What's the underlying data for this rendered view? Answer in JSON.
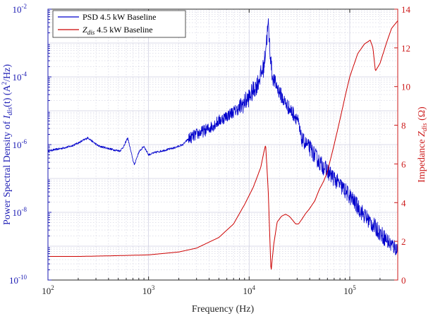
{
  "chart_data": {
    "type": "line",
    "title": "",
    "xlabel": "Frequency (Hz)",
    "xscale": "log",
    "xlim": [
      100,
      300000
    ],
    "x_ticks": [
      100,
      1000,
      10000,
      100000
    ],
    "x_tick_labels": [
      {
        "base": "10",
        "exp": "2"
      },
      {
        "base": "10",
        "exp": "3"
      },
      {
        "base": "10",
        "exp": "4"
      },
      {
        "base": "10",
        "exp": "5"
      }
    ],
    "ylabel_left": {
      "prefix": "Power Spectral Density of ",
      "I": "I",
      "sub": "dis",
      "suffix": "(t) (A",
      "sup": "2",
      "tail": "/Hz)"
    },
    "yscale_left": "log",
    "ylim_left": [
      1e-10,
      0.01
    ],
    "y_ticks_left": [
      1e-10,
      1e-08,
      1e-06,
      0.0001,
      0.01
    ],
    "y_tick_labels_left": [
      {
        "base": "10",
        "exp": "-10"
      },
      {
        "base": "10",
        "exp": "-8"
      },
      {
        "base": "10",
        "exp": "-6"
      },
      {
        "base": "10",
        "exp": "-4"
      },
      {
        "base": "10",
        "exp": "-2"
      }
    ],
    "ylabel_right": {
      "prefix": "Impedance ",
      "Z": "Z",
      "sub": "dis",
      "suffix": " (Ω)"
    },
    "yscale_right": "linear",
    "ylim_right": [
      0,
      14
    ],
    "y_ticks_right": [
      0,
      2,
      4,
      6,
      8,
      10,
      12,
      14
    ],
    "y_tick_labels_right": [
      "0",
      "2",
      "4",
      "6",
      "8",
      "10",
      "12",
      "14"
    ],
    "grid": true,
    "legend_position": "top-left",
    "series": [
      {
        "name": "PSD 4.5 kW Baseline",
        "legend_parts": {
          "main": "PSD 4.5 kW Baseline"
        },
        "color": "#0000cc",
        "axis": "left",
        "x": [
          100,
          130,
          170,
          210,
          250,
          280,
          320,
          380,
          450,
          520,
          570,
          620,
          680,
          720,
          800,
          900,
          1000,
          1200,
          1500,
          1800,
          2200,
          2500,
          3000,
          4000,
          5000,
          6000,
          8000,
          10000,
          12000,
          14000,
          15000,
          15500,
          16000,
          17000,
          19000,
          22000,
          26000,
          30000,
          33000,
          40000,
          50000,
          70000,
          100000,
          140000,
          200000,
          250000,
          300000
        ],
        "y": [
          6.5e-07,
          7.5e-07,
          9e-07,
          1.2e-06,
          1.6e-06,
          1.2e-06,
          9e-07,
          8e-07,
          7e-07,
          6.5e-07,
          9e-07,
          1.6e-06,
          5e-07,
          2.5e-07,
          6e-07,
          9e-07,
          5e-07,
          6e-07,
          7e-07,
          8e-07,
          1e-06,
          1.5e-06,
          2e-06,
          3e-06,
          5e-06,
          7e-06,
          1.2e-05,
          2.5e-05,
          6e-05,
          0.0002,
          0.0015,
          0.0035,
          0.0008,
          0.0001,
          5e-05,
          2e-05,
          1e-05,
          6e-06,
          1.5e-06,
          8e-07,
          3e-07,
          1e-07,
          3e-08,
          8e-09,
          2.5e-09,
          1.2e-09,
          8e-10
        ]
      },
      {
        "name": "Z_dis 4.5 kW Baseline",
        "legend_parts": {
          "Z": "Z",
          "sub": "dis",
          "rest": " 4.5 kW Baseline"
        },
        "color": "#cc0000",
        "axis": "right",
        "x": [
          100,
          200,
          400,
          700,
          1000,
          2000,
          3000,
          5000,
          7000,
          9000,
          11000,
          13000,
          14000,
          14600,
          15500,
          16500,
          17500,
          19000,
          21000,
          23000,
          25000,
          27000,
          29000,
          31000,
          33000,
          36000,
          40000,
          45000,
          50000,
          55000,
          60000,
          70000,
          80000,
          90000,
          100000,
          120000,
          140000,
          160000,
          170000,
          180000,
          200000,
          230000,
          260000,
          300000
        ],
        "y": [
          1.22,
          1.22,
          1.25,
          1.28,
          1.3,
          1.45,
          1.65,
          2.2,
          2.9,
          3.9,
          4.8,
          5.8,
          6.6,
          7.0,
          4.5,
          0.4,
          1.8,
          3.0,
          3.3,
          3.4,
          3.3,
          3.1,
          2.9,
          2.9,
          3.1,
          3.4,
          3.7,
          4.1,
          4.7,
          5.1,
          5.6,
          7.0,
          8.3,
          9.5,
          10.5,
          11.7,
          12.2,
          12.4,
          12.0,
          10.8,
          11.2,
          12.2,
          13.0,
          13.4
        ]
      }
    ]
  }
}
